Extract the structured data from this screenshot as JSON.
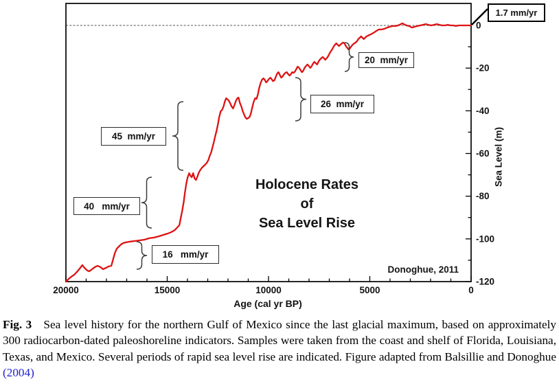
{
  "chart_data": {
    "type": "line",
    "title_lines": [
      "Holocene Rates",
      "of",
      "Sea Level Rise"
    ],
    "xlabel": "Age (cal yr BP)",
    "ylabel": "Sea Level (m)",
    "credit": "Donoghue, 2011",
    "xlim": [
      20000,
      0
    ],
    "ylim": [
      -120,
      10
    ],
    "x_ticks": [
      20000,
      15000,
      10000,
      5000,
      0
    ],
    "x_tick_labels": [
      "20000",
      "15000",
      "10000",
      "5000",
      "0"
    ],
    "x_minor_step": 1000,
    "y_ticks": [
      0,
      -20,
      -40,
      -60,
      -80,
      -100,
      -120
    ],
    "y_tick_labels": [
      "0",
      "-20",
      "-40",
      "-60",
      "-80",
      "-100",
      "-120"
    ],
    "y_minor_step": 10,
    "zero_line_value": 0,
    "grid": false,
    "line_color": "#dd1111",
    "annotations": [
      {
        "id": "rate-modern",
        "label": "1.7 mm/yr"
      },
      {
        "id": "rate-20",
        "label": "20  mm/yr"
      },
      {
        "id": "rate-26",
        "label": "26  mm/yr"
      },
      {
        "id": "rate-45",
        "label": "45  mm/yr"
      },
      {
        "id": "rate-40",
        "label": "40   mm/yr"
      },
      {
        "id": "rate-16",
        "label": "16   mm/yr"
      }
    ],
    "series": [
      {
        "name": "Gulf of Mexico sea level",
        "points": [
          [
            20000,
            -120
          ],
          [
            19860,
            -118.7
          ],
          [
            19730,
            -117.7
          ],
          [
            19590,
            -116.8
          ],
          [
            19460,
            -115.5
          ],
          [
            19320,
            -113.9
          ],
          [
            19190,
            -112.3
          ],
          [
            19080,
            -113.6
          ],
          [
            18950,
            -114.8
          ],
          [
            18850,
            -115.2
          ],
          [
            18710,
            -114.2
          ],
          [
            18570,
            -113.2
          ],
          [
            18440,
            -112.6
          ],
          [
            18300,
            -113.2
          ],
          [
            18170,
            -114.2
          ],
          [
            18030,
            -113.6
          ],
          [
            17890,
            -112.9
          ],
          [
            17760,
            -112.6
          ],
          [
            17690,
            -110.3
          ],
          [
            17590,
            -106.8
          ],
          [
            17490,
            -104.6
          ],
          [
            17390,
            -103.6
          ],
          [
            17280,
            -102.6
          ],
          [
            17180,
            -102
          ],
          [
            17080,
            -101.7
          ],
          [
            16840,
            -101.3
          ],
          [
            16600,
            -101
          ],
          [
            16370,
            -100.7
          ],
          [
            16130,
            -100.4
          ],
          [
            15890,
            -99.7
          ],
          [
            15650,
            -99.4
          ],
          [
            15420,
            -98.8
          ],
          [
            15180,
            -98.1
          ],
          [
            14970,
            -97.5
          ],
          [
            14800,
            -96.8
          ],
          [
            14630,
            -95.9
          ],
          [
            14500,
            -94.6
          ],
          [
            14400,
            -93.6
          ],
          [
            14330,
            -90.1
          ],
          [
            14260,
            -86.9
          ],
          [
            14190,
            -83
          ],
          [
            14130,
            -78.5
          ],
          [
            14060,
            -74.3
          ],
          [
            13990,
            -71.1
          ],
          [
            13920,
            -69.2
          ],
          [
            13850,
            -70.5
          ],
          [
            13790,
            -71.1
          ],
          [
            13720,
            -69.2
          ],
          [
            13650,
            -71.7
          ],
          [
            13580,
            -72.4
          ],
          [
            13510,
            -70.8
          ],
          [
            13450,
            -69.2
          ],
          [
            13380,
            -67.9
          ],
          [
            13280,
            -66.6
          ],
          [
            13170,
            -65.6
          ],
          [
            13070,
            -64.7
          ],
          [
            12970,
            -63.1
          ],
          [
            12900,
            -61.1
          ],
          [
            12830,
            -59.5
          ],
          [
            12770,
            -57.3
          ],
          [
            12700,
            -54.7
          ],
          [
            12630,
            -51.8
          ],
          [
            12560,
            -49.2
          ],
          [
            12490,
            -46
          ],
          [
            12430,
            -42.8
          ],
          [
            12360,
            -40.2
          ],
          [
            12290,
            -39.6
          ],
          [
            12220,
            -38
          ],
          [
            12160,
            -35.7
          ],
          [
            12090,
            -34.1
          ],
          [
            12020,
            -34.7
          ],
          [
            11950,
            -35.4
          ],
          [
            11880,
            -36.7
          ],
          [
            11820,
            -38
          ],
          [
            11750,
            -38.9
          ],
          [
            11680,
            -37.3
          ],
          [
            11610,
            -35.4
          ],
          [
            11540,
            -34.1
          ],
          [
            11480,
            -33.8
          ],
          [
            11410,
            -36.4
          ],
          [
            11340,
            -38
          ],
          [
            11270,
            -40.2
          ],
          [
            11200,
            -41.8
          ],
          [
            11140,
            -43.1
          ],
          [
            11070,
            -43.8
          ],
          [
            11000,
            -43.4
          ],
          [
            10930,
            -42.8
          ],
          [
            10860,
            -40.9
          ],
          [
            10800,
            -38.3
          ],
          [
            10730,
            -35.7
          ],
          [
            10660,
            -34.1
          ],
          [
            10590,
            -34.4
          ],
          [
            10530,
            -32.5
          ],
          [
            10460,
            -29.3
          ],
          [
            10390,
            -27
          ],
          [
            10320,
            -25.4
          ],
          [
            10250,
            -24.8
          ],
          [
            10190,
            -25.4
          ],
          [
            10120,
            -26.7
          ],
          [
            10050,
            -26.1
          ],
          [
            9980,
            -25.1
          ],
          [
            9910,
            -24.5
          ],
          [
            9850,
            -25.1
          ],
          [
            9780,
            -26.1
          ],
          [
            9710,
            -25.7
          ],
          [
            9640,
            -24.1
          ],
          [
            9570,
            -22.5
          ],
          [
            9510,
            -21.9
          ],
          [
            9440,
            -23.2
          ],
          [
            9370,
            -24.5
          ],
          [
            9300,
            -23.8
          ],
          [
            9230,
            -22.8
          ],
          [
            9170,
            -22.2
          ],
          [
            9100,
            -21.9
          ],
          [
            9030,
            -22.8
          ],
          [
            8960,
            -23.5
          ],
          [
            8890,
            -22.8
          ],
          [
            8830,
            -21.9
          ],
          [
            8760,
            -22.2
          ],
          [
            8690,
            -21.6
          ],
          [
            8620,
            -20.3
          ],
          [
            8560,
            -19.3
          ],
          [
            8490,
            -19.9
          ],
          [
            8420,
            -20.9
          ],
          [
            8350,
            -21.9
          ],
          [
            8280,
            -21.2
          ],
          [
            8220,
            -19.9
          ],
          [
            8150,
            -19
          ],
          [
            8080,
            -18.3
          ],
          [
            8010,
            -19
          ],
          [
            7940,
            -19.9
          ],
          [
            7880,
            -19.3
          ],
          [
            7810,
            -18
          ],
          [
            7740,
            -17.1
          ],
          [
            7670,
            -17.7
          ],
          [
            7600,
            -18.3
          ],
          [
            7540,
            -17.1
          ],
          [
            7470,
            -16.1
          ],
          [
            7400,
            -15.4
          ],
          [
            7330,
            -14.8
          ],
          [
            7260,
            -15.4
          ],
          [
            7200,
            -16.1
          ],
          [
            7130,
            -15.4
          ],
          [
            7060,
            -14.5
          ],
          [
            6990,
            -13.2
          ],
          [
            6930,
            -12.2
          ],
          [
            6860,
            -11.3
          ],
          [
            6790,
            -10
          ],
          [
            6720,
            -9
          ],
          [
            6650,
            -8.4
          ],
          [
            6590,
            -9
          ],
          [
            6520,
            -9.7
          ],
          [
            6450,
            -9
          ],
          [
            6380,
            -8.4
          ],
          [
            6310,
            -8
          ],
          [
            6250,
            -8.4
          ],
          [
            6180,
            -9.7
          ],
          [
            6110,
            -10.6
          ],
          [
            6040,
            -11.3
          ],
          [
            5970,
            -10.6
          ],
          [
            5910,
            -9.7
          ],
          [
            5840,
            -9
          ],
          [
            5770,
            -8.4
          ],
          [
            5700,
            -8
          ],
          [
            5630,
            -7.4
          ],
          [
            5570,
            -6.4
          ],
          [
            5500,
            -5.8
          ],
          [
            5430,
            -5.1
          ],
          [
            5360,
            -5.8
          ],
          [
            5300,
            -6.4
          ],
          [
            5230,
            -5.8
          ],
          [
            5160,
            -5.1
          ],
          [
            5090,
            -4.8
          ],
          [
            4960,
            -4.2
          ],
          [
            4820,
            -3.5
          ],
          [
            4680,
            -2.6
          ],
          [
            4550,
            -1.9
          ],
          [
            4410,
            -1.9
          ],
          [
            4280,
            -1.6
          ],
          [
            4140,
            -1
          ],
          [
            4010,
            -0.6
          ],
          [
            3870,
            -0.3
          ],
          [
            3730,
            -0.3
          ],
          [
            3600,
            0
          ],
          [
            3460,
            0.6
          ],
          [
            3390,
            1
          ],
          [
            3330,
            0.6
          ],
          [
            3190,
            0
          ],
          [
            3060,
            -0.3
          ],
          [
            2920,
            -1
          ],
          [
            2780,
            -0.6
          ],
          [
            2650,
            -0.3
          ],
          [
            2510,
            0
          ],
          [
            2380,
            0.3
          ],
          [
            2240,
            0.6
          ],
          [
            2110,
            0.3
          ],
          [
            1970,
            0
          ],
          [
            1830,
            0.3
          ],
          [
            1700,
            0.6
          ],
          [
            1560,
            0.3
          ],
          [
            1430,
            0
          ],
          [
            1290,
            0
          ],
          [
            1150,
            0.3
          ],
          [
            1020,
            0
          ],
          [
            880,
            0
          ],
          [
            750,
            -0.3
          ],
          [
            610,
            0
          ],
          [
            480,
            0
          ],
          [
            340,
            0
          ],
          [
            200,
            0
          ],
          [
            100,
            0
          ],
          [
            0,
            0
          ]
        ]
      }
    ]
  },
  "caption": {
    "label": "Fig. 3",
    "body": "Sea level history for the northern Gulf of Mexico since the last glacial maximum, based on approximately 300 radiocarbon-dated paleoshoreline indicators. Samples were taken from the coast and shelf of Florida, Louisiana, Texas, and Mexico. Several periods of rapid sea level rise are indicated. Figure adapted from Balsillie and Donoghue ",
    "link_text": "(2004)"
  }
}
